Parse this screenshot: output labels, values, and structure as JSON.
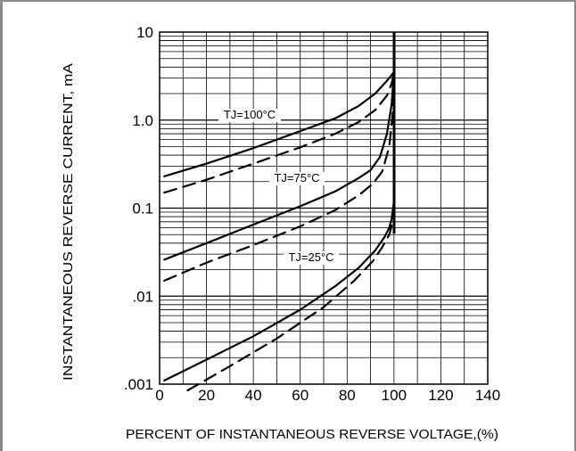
{
  "chart_data": {
    "type": "line",
    "xlabel": "PERCENT OF INSTANTANEOUS REVERSE VOLTAGE,(%)",
    "ylabel": "INSTANTANEOUS REVERSE CURRENT, mA",
    "xlim": [
      0,
      140
    ],
    "ylim": [
      0.001,
      10
    ],
    "yscale": "log",
    "grid": true,
    "x_ticks": [
      "0",
      "20",
      "40",
      "60",
      "80",
      "100",
      "120",
      "140"
    ],
    "y_ticks": [
      {
        "value": 0.001,
        "label": ".001"
      },
      {
        "value": 0.01,
        "label": ".01"
      },
      {
        "value": 0.1,
        "label": "0.1"
      },
      {
        "value": 1,
        "label": "1.0"
      },
      {
        "value": 10,
        "label": "10"
      }
    ],
    "annotations": [
      {
        "text": "TJ=100°C",
        "series_index": 0
      },
      {
        "text": "TJ=75°C",
        "series_index": 2
      },
      {
        "text": "TJ=25°C",
        "series_index": 4
      }
    ],
    "series": [
      {
        "style": "solid",
        "points": [
          [
            2,
            0.23
          ],
          [
            20,
            0.32
          ],
          [
            40,
            0.48
          ],
          [
            60,
            0.75
          ],
          [
            75,
            1.05
          ],
          [
            85,
            1.45
          ],
          [
            92,
            2.0
          ],
          [
            97,
            2.8
          ],
          [
            100,
            3.5
          ]
        ]
      },
      {
        "style": "dashed",
        "points": [
          [
            2,
            0.15
          ],
          [
            20,
            0.21
          ],
          [
            40,
            0.32
          ],
          [
            60,
            0.49
          ],
          [
            75,
            0.7
          ],
          [
            85,
            0.95
          ],
          [
            92,
            1.3
          ],
          [
            97,
            1.9
          ],
          [
            99,
            2.6
          ],
          [
            100,
            3.5
          ]
        ]
      },
      {
        "style": "solid",
        "points": [
          [
            2,
            0.026
          ],
          [
            20,
            0.04
          ],
          [
            40,
            0.065
          ],
          [
            60,
            0.105
          ],
          [
            75,
            0.155
          ],
          [
            85,
            0.22
          ],
          [
            90,
            0.27
          ],
          [
            94,
            0.38
          ],
          [
            97,
            0.7
          ],
          [
            99,
            1.5
          ],
          [
            100,
            3.5
          ]
        ]
      },
      {
        "style": "dashed",
        "points": [
          [
            2,
            0.015
          ],
          [
            20,
            0.024
          ],
          [
            40,
            0.038
          ],
          [
            60,
            0.062
          ],
          [
            75,
            0.095
          ],
          [
            85,
            0.14
          ],
          [
            91,
            0.19
          ],
          [
            95,
            0.26
          ],
          [
            98,
            0.5
          ],
          [
            99.5,
            1.2
          ],
          [
            100,
            3.5
          ]
        ]
      },
      {
        "style": "solid",
        "points": [
          [
            2,
            0.0011
          ],
          [
            20,
            0.0019
          ],
          [
            40,
            0.0035
          ],
          [
            60,
            0.007
          ],
          [
            75,
            0.013
          ],
          [
            85,
            0.021
          ],
          [
            92,
            0.033
          ],
          [
            96,
            0.047
          ],
          [
            98,
            0.06
          ],
          [
            99,
            0.075
          ],
          [
            100,
            0.12
          ],
          [
            100,
            3.5
          ]
        ]
      },
      {
        "style": "dashed",
        "points": [
          [
            12,
            0.00085
          ],
          [
            30,
            0.0016
          ],
          [
            50,
            0.0033
          ],
          [
            70,
            0.0075
          ],
          [
            83,
            0.015
          ],
          [
            91,
            0.025
          ],
          [
            95,
            0.036
          ],
          [
            98,
            0.05
          ],
          [
            99,
            0.063
          ],
          [
            100,
            0.1
          ],
          [
            100,
            3.5
          ]
        ]
      }
    ]
  }
}
